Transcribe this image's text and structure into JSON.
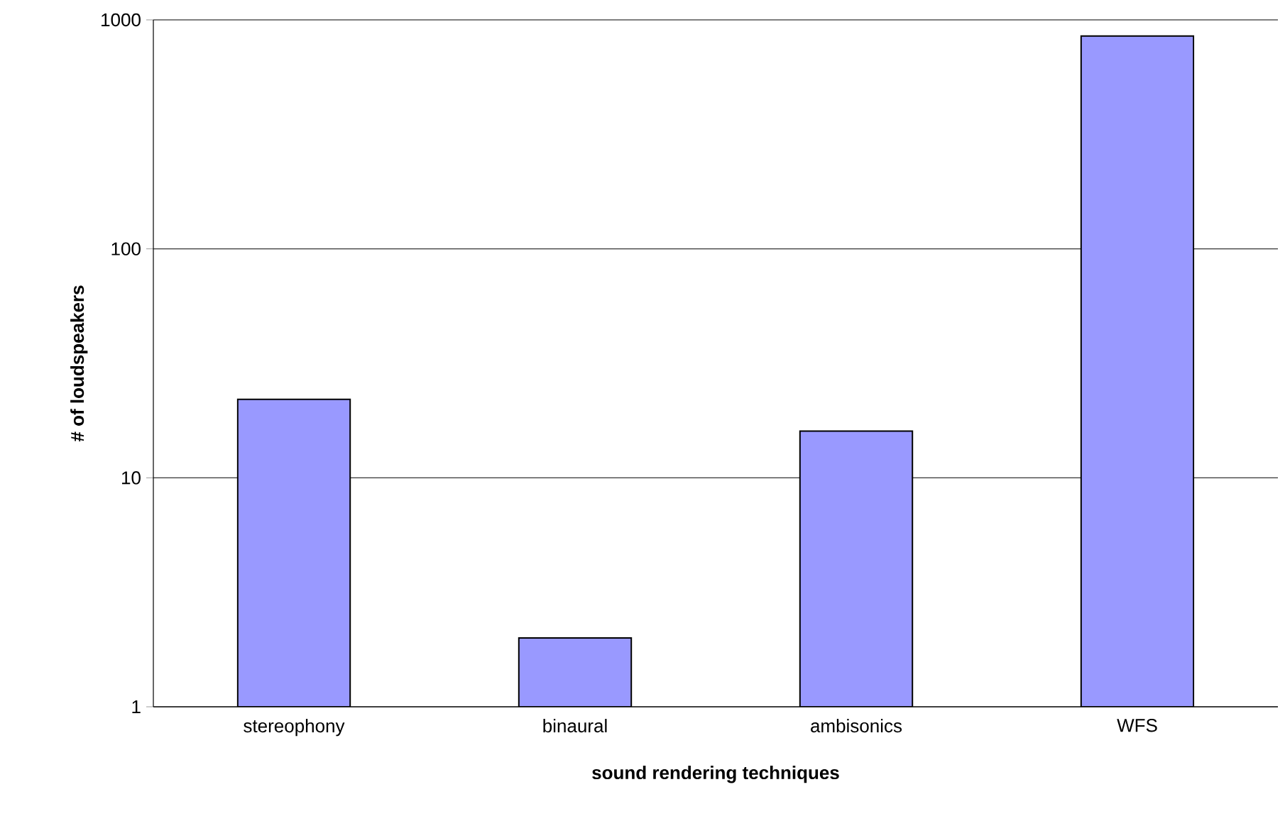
{
  "chart_data": {
    "type": "bar",
    "xlabel": "sound rendering techniques",
    "ylabel": "# of loudspeakers",
    "categories": [
      "stereophony",
      "binaural",
      "ambisonics",
      "WFS"
    ],
    "values": [
      22,
      2,
      16,
      850
    ],
    "color": "#9999ff",
    "log": "y",
    "ylim": [
      1,
      1000
    ],
    "yticks": [
      1,
      10,
      100,
      1000
    ],
    "grid": "y"
  }
}
